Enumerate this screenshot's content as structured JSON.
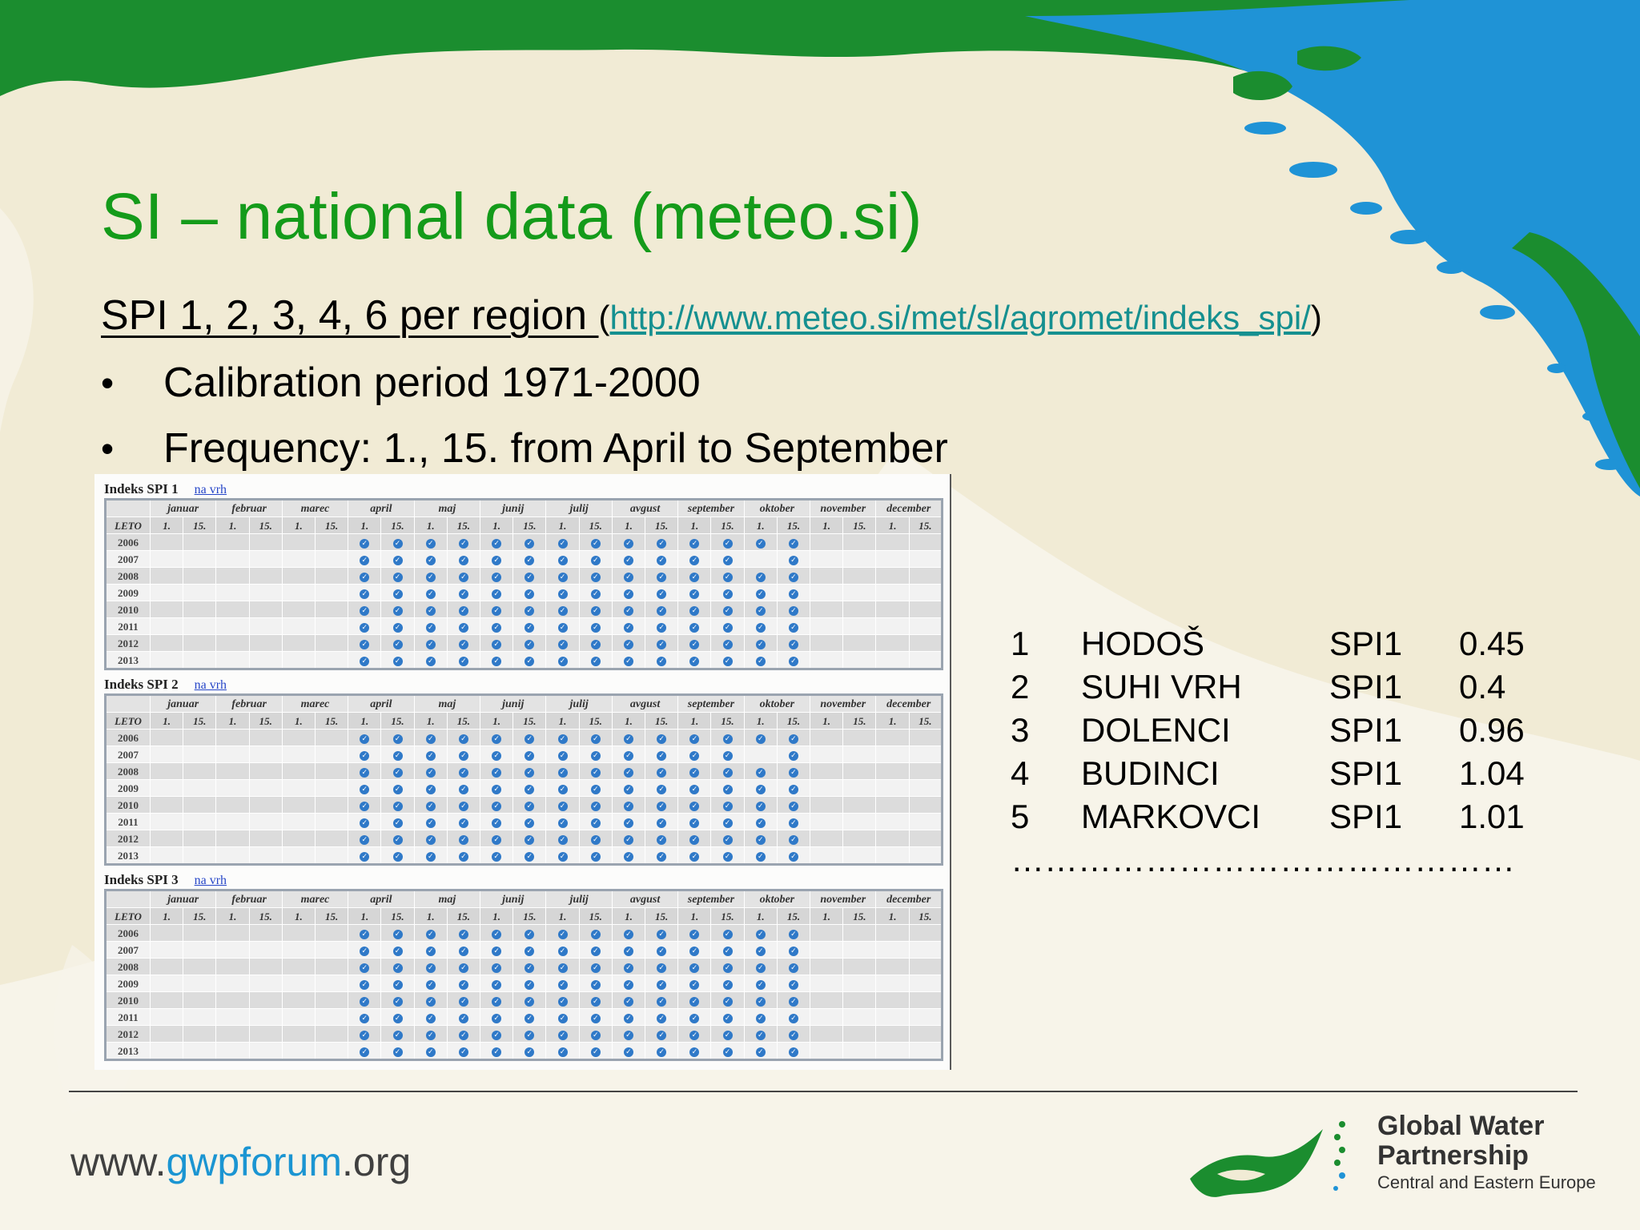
{
  "slide": {
    "title": "SI – national data (meteo.si)",
    "subtitle": "SPI 1, 2, 3, 4, 6 per region ",
    "link_open": "(",
    "link": "http://www.meteo.si/met/sl/agromet/indeks_spi/",
    "link_close": ")",
    "bullets": [
      "Calibration period 1971-2000",
      "Frequency: 1., 15. from April to September"
    ]
  },
  "spi_tables": {
    "months": [
      "januar",
      "februar",
      "marec",
      "april",
      "maj",
      "junij",
      "julij",
      "avgust",
      "september",
      "oktober",
      "november",
      "december"
    ],
    "days": [
      "1.",
      "15."
    ],
    "year_header": "LETO",
    "years": [
      "2006",
      "2007",
      "2008",
      "2009",
      "2010",
      "2011",
      "2012",
      "2013"
    ],
    "link_label": "na vrh",
    "check_symbol": "✓",
    "blocks": [
      {
        "title": "Indeks SPI 1",
        "checks": [
          [
            6,
            7,
            8,
            9,
            10,
            11,
            12,
            13,
            14,
            15,
            16,
            17,
            18,
            19
          ],
          [
            6,
            7,
            8,
            9,
            10,
            11,
            12,
            13,
            14,
            15,
            16,
            17,
            19
          ],
          [
            6,
            7,
            8,
            9,
            10,
            11,
            12,
            13,
            14,
            15,
            16,
            17,
            18,
            19
          ],
          [
            6,
            7,
            8,
            9,
            10,
            11,
            12,
            13,
            14,
            15,
            16,
            17,
            18,
            19
          ],
          [
            6,
            7,
            8,
            9,
            10,
            11,
            12,
            13,
            14,
            15,
            16,
            17,
            18,
            19
          ],
          [
            6,
            7,
            8,
            9,
            10,
            11,
            12,
            13,
            14,
            15,
            16,
            17,
            18,
            19
          ],
          [
            6,
            7,
            8,
            9,
            10,
            11,
            12,
            13,
            14,
            15,
            16,
            17,
            18,
            19
          ],
          [
            6,
            7,
            8,
            9,
            10,
            11,
            12,
            13,
            14,
            15,
            16,
            17,
            18,
            19
          ]
        ]
      },
      {
        "title": "Indeks SPI 2",
        "checks": [
          [
            6,
            7,
            8,
            9,
            10,
            11,
            12,
            13,
            14,
            15,
            16,
            17,
            18,
            19
          ],
          [
            6,
            7,
            8,
            9,
            10,
            11,
            12,
            13,
            14,
            15,
            16,
            17,
            19
          ],
          [
            6,
            7,
            8,
            9,
            10,
            11,
            12,
            13,
            14,
            15,
            16,
            17,
            18,
            19
          ],
          [
            6,
            7,
            8,
            9,
            10,
            11,
            12,
            13,
            14,
            15,
            16,
            17,
            18,
            19
          ],
          [
            6,
            7,
            8,
            9,
            10,
            11,
            12,
            13,
            14,
            15,
            16,
            17,
            18,
            19
          ],
          [
            6,
            7,
            8,
            9,
            10,
            11,
            12,
            13,
            14,
            15,
            16,
            17,
            18,
            19
          ],
          [
            6,
            7,
            8,
            9,
            10,
            11,
            12,
            13,
            14,
            15,
            16,
            17,
            18,
            19
          ],
          [
            6,
            7,
            8,
            9,
            10,
            11,
            12,
            13,
            14,
            15,
            16,
            17,
            18,
            19
          ]
        ]
      },
      {
        "title": "Indeks SPI 3",
        "checks": [
          [
            6,
            7,
            8,
            9,
            10,
            11,
            12,
            13,
            14,
            15,
            16,
            17,
            18,
            19
          ],
          [
            6,
            7,
            8,
            9,
            10,
            11,
            12,
            13,
            14,
            15,
            16,
            17,
            18,
            19
          ],
          [
            6,
            7,
            8,
            9,
            10,
            11,
            12,
            13,
            14,
            15,
            16,
            17,
            18,
            19
          ],
          [
            6,
            7,
            8,
            9,
            10,
            11,
            12,
            13,
            14,
            15,
            16,
            17,
            18,
            19
          ],
          [
            6,
            7,
            8,
            9,
            10,
            11,
            12,
            13,
            14,
            15,
            16,
            17,
            18,
            19
          ],
          [
            6,
            7,
            8,
            9,
            10,
            11,
            12,
            13,
            14,
            15,
            16,
            17,
            18,
            19
          ],
          [
            6,
            7,
            8,
            9,
            10,
            11,
            12,
            13,
            14,
            15,
            16,
            17,
            18,
            19
          ],
          [
            6,
            7,
            8,
            9,
            10,
            11,
            12,
            13,
            14,
            15,
            16,
            17,
            18,
            19
          ]
        ]
      }
    ]
  },
  "stations": [
    {
      "number": "1",
      "name": "HODOŠ",
      "index": "SPI1",
      "value": "0.45"
    },
    {
      "number": "2",
      "name": "SUHI VRH",
      "index": "SPI1",
      "value": "0.4"
    },
    {
      "number": "3",
      "name": "DOLENCI",
      "index": "SPI1",
      "value": "0.96"
    },
    {
      "number": "4",
      "name": "BUDINCI",
      "index": "SPI1",
      "value": "1.04"
    },
    {
      "number": "5",
      "name": "MARKOVCI",
      "index": "SPI1",
      "value": "1.01"
    }
  ],
  "stations_more": "………………………………………",
  "footer": {
    "url_prefix": "www.",
    "url_accent": "gwpforum",
    "url_suffix": ".org",
    "logo_name_line1": "Global Water",
    "logo_name_line2": "Partnership",
    "logo_region": "Central and Eastern Europe"
  },
  "colors": {
    "title": "#149b1a",
    "link": "#159090",
    "background": "#f1ebd5",
    "land": "#1b8d2f",
    "water": "#1f93d6",
    "check": "#2f79c8"
  }
}
